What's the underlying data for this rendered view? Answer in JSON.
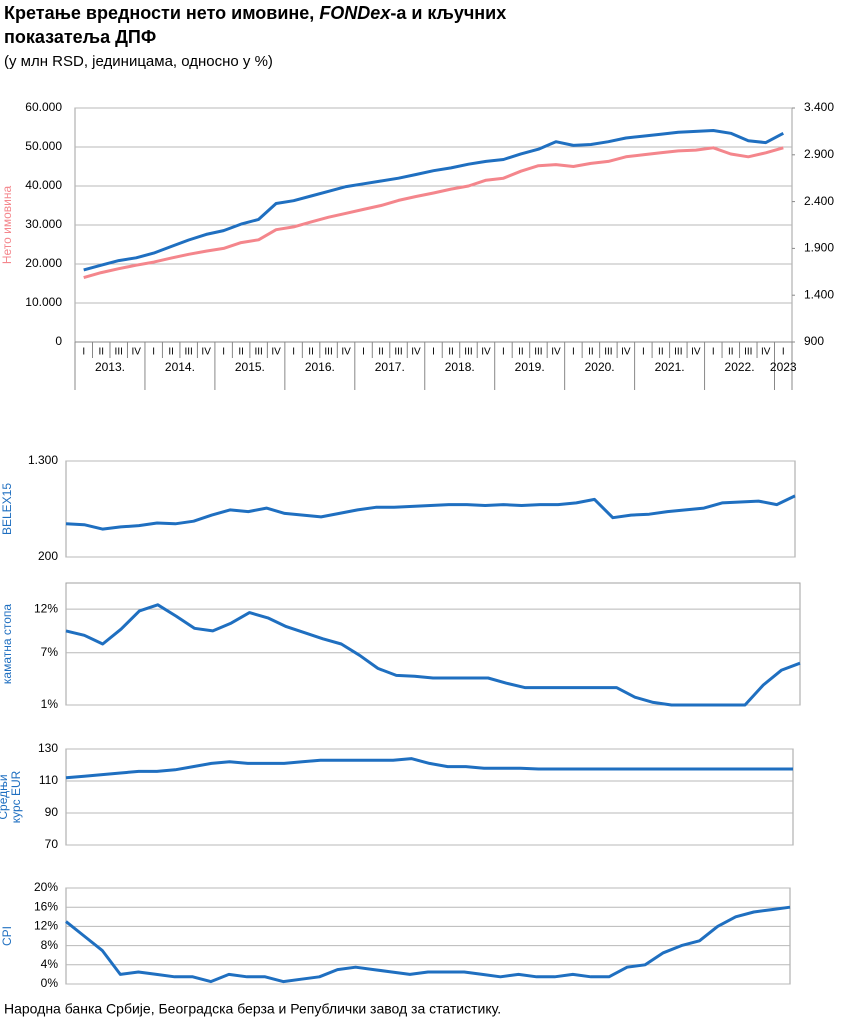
{
  "title_parts": [
    "Кретање вредности нето имовине, ",
    "FONDex",
    "-а и кључних",
    "показатеља ДПФ"
  ],
  "subtitle": "(у млн RSD, јединицама, односно у %)",
  "source": "Народна банка Србије, Београдска берза и Републички завод за статистику.",
  "chart_data": [
    {
      "type": "line",
      "ylabel": [
        "Нето имовина"
      ],
      "categories": [
        "I",
        "II",
        "III",
        "IV",
        "I",
        "II",
        "III",
        "IV",
        "I",
        "II",
        "III",
        "IV",
        "I",
        "II",
        "III",
        "IV",
        "I",
        "II",
        "III",
        "IV",
        "I",
        "II",
        "III",
        "IV",
        "I",
        "II",
        "III",
        "IV",
        "I",
        "II",
        "III",
        "IV",
        "I",
        "II",
        "III",
        "IV",
        "I",
        "II",
        "III",
        "IV",
        "I"
      ],
      "years": [
        "2013.",
        "2014.",
        "2015.",
        "2016.",
        "2017.",
        "2018.",
        "2019.",
        "2020.",
        "2021.",
        "2022.",
        "2023"
      ],
      "ylim": [
        0,
        60000
      ],
      "yticks": [
        0,
        {
          "value": 10000,
          "label": "10.000"
        },
        {
          "value": 20000,
          "label": "20.000"
        },
        {
          "value": 30000,
          "label": "30.000"
        },
        {
          "value": 40000,
          "label": "40.000"
        },
        {
          "value": 50000,
          "label": "50.000"
        },
        {
          "value": 60000,
          "label": "60.000"
        }
      ],
      "y2lim": [
        900,
        3400
      ],
      "y2ticks": [
        900,
        {
          "value": 1400,
          "label": "1.400"
        },
        {
          "value": 1900,
          "label": "1.900"
        },
        {
          "value": 2400,
          "label": "2.400"
        },
        {
          "value": 2900,
          "label": "2.900"
        },
        {
          "value": 3400,
          "label": "3.400"
        }
      ],
      "grid": true,
      "series": [
        {
          "name": "Нето имовина",
          "color": "#f4868c",
          "values": [
            16500,
            17800,
            18800,
            19700,
            20500,
            21500,
            22500,
            23300,
            24000,
            25500,
            26200,
            28800,
            29500,
            30800,
            32000,
            33000,
            34000,
            35000,
            36300,
            37300,
            38200,
            39200,
            40000,
            41500,
            42000,
            43800,
            45200,
            45500,
            45000,
            45800,
            46300,
            47500,
            48000,
            48500,
            49000,
            49200,
            49800,
            48200,
            47500,
            48500,
            49800
          ]
        },
        {
          "name": "FONDex",
          "color": "#1f6fc0",
          "axis": "y2",
          "values": [
            1670,
            1720,
            1770,
            1800,
            1850,
            1920,
            1990,
            2050,
            2090,
            2160,
            2210,
            2380,
            2410,
            2460,
            2510,
            2560,
            2590,
            2620,
            2650,
            2690,
            2730,
            2760,
            2800,
            2830,
            2850,
            2910,
            2960,
            3040,
            3000,
            3010,
            3040,
            3080,
            3100,
            3120,
            3140,
            3150,
            3160,
            3130,
            3050,
            3030,
            3130
          ]
        }
      ]
    },
    {
      "type": "line",
      "ylabel": [
        "BELEX15"
      ],
      "color": "#1f6fc0",
      "ylim": [
        200,
        1300
      ],
      "yticks": [
        200,
        {
          "value": 1300,
          "label": "1.300"
        }
      ],
      "grid": true,
      "values": [
        580,
        570,
        520,
        545,
        560,
        590,
        580,
        610,
        680,
        740,
        720,
        760,
        700,
        680,
        660,
        700,
        740,
        770,
        770,
        780,
        790,
        800,
        800,
        790,
        800,
        790,
        800,
        800,
        820,
        860,
        650,
        680,
        690,
        720,
        740,
        760,
        820,
        830,
        840,
        800,
        900
      ]
    },
    {
      "type": "line",
      "ylabel": [
        "каматна стопа"
      ],
      "color": "#1f6fc0",
      "ylim": [
        1,
        15
      ],
      "yticks": [
        {
          "value": 1,
          "label": "1%"
        },
        {
          "value": 7,
          "label": "7%"
        },
        {
          "value": 12,
          "label": "12%"
        }
      ],
      "grid": true,
      "values": [
        9.5,
        9,
        8,
        9.7,
        11.8,
        12.5,
        11.2,
        9.8,
        9.5,
        10.4,
        11.6,
        11,
        10,
        9.3,
        8.6,
        8,
        6.7,
        5.2,
        4.4,
        4.3,
        4.1,
        4.1,
        4.1,
        4.1,
        3.5,
        3,
        3,
        3,
        3,
        3,
        3,
        1.9,
        1.3,
        1,
        1,
        1,
        1,
        1,
        3.3,
        5,
        5.8
      ]
    },
    {
      "type": "line",
      "ylabel": [
        "Средњи",
        "курс EUR"
      ],
      "color": "#1f6fc0",
      "ylim": [
        70,
        130
      ],
      "yticks": [
        70,
        90,
        110,
        130
      ],
      "grid": true,
      "values": [
        112,
        113,
        114,
        115,
        116,
        116,
        117,
        119,
        121,
        122,
        121,
        121,
        121,
        122,
        123,
        123,
        123,
        123,
        123,
        124,
        121,
        119,
        119,
        118,
        118,
        118,
        117.5,
        117.5,
        117.5,
        117.5,
        117.5,
        117.5,
        117.5,
        117.5,
        117.5,
        117.5,
        117.5,
        117.5,
        117.5,
        117.5,
        117.5
      ]
    },
    {
      "type": "line",
      "ylabel": [
        "CPI"
      ],
      "color": "#1f6fc0",
      "ylim": [
        0,
        20
      ],
      "yticks": [
        {
          "value": 0,
          "label": "0%"
        },
        {
          "value": 4,
          "label": "4%"
        },
        {
          "value": 8,
          "label": "8%"
        },
        {
          "value": 12,
          "label": "12%"
        },
        {
          "value": 16,
          "label": "16%"
        },
        {
          "value": 20,
          "label": "20%"
        }
      ],
      "grid": true,
      "values": [
        13,
        10,
        7,
        2,
        2.5,
        2,
        1.5,
        1.5,
        0.5,
        2,
        1.5,
        1.5,
        0.5,
        1,
        1.5,
        3,
        3.5,
        3,
        2.5,
        2,
        2.5,
        2.5,
        2.5,
        2,
        1.5,
        2,
        1.5,
        1.5,
        2,
        1.5,
        1.5,
        3.5,
        4,
        6.5,
        8,
        9,
        12,
        14,
        15,
        15.5,
        16
      ]
    }
  ]
}
